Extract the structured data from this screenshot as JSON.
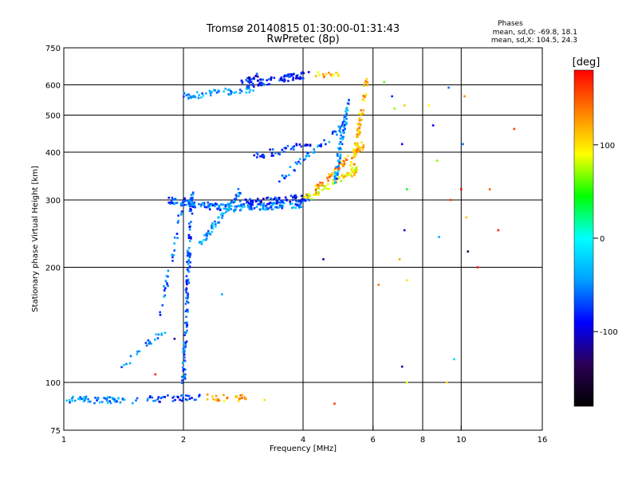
{
  "chart_data": {
    "type": "scatter",
    "title": "Tromsø 20140815 01:30:00-01:31:43",
    "subtitle": "RwPretec (8p)",
    "xlabel": "Frequency [MHz]",
    "ylabel": "Stationary phase Virtual Height [km]",
    "x_scale": "log2",
    "y_scale": "log",
    "xlim": [
      1,
      16
    ],
    "ylim": [
      75,
      750
    ],
    "x_ticks": [
      {
        "value": 1,
        "label": "1"
      },
      {
        "value": 2,
        "label": "2"
      },
      {
        "value": 4,
        "label": "4"
      },
      {
        "value": 6,
        "label": "6"
      },
      {
        "value": 8,
        "label": "8"
      },
      {
        "value": 10,
        "label": "10"
      },
      {
        "value": 16,
        "label": "16"
      }
    ],
    "y_ticks": [
      {
        "value": 75,
        "label": "75"
      },
      {
        "value": 100,
        "label": "100"
      },
      {
        "value": 200,
        "label": "200"
      },
      {
        "value": 300,
        "label": "300"
      },
      {
        "value": 400,
        "label": "400"
      },
      {
        "value": 500,
        "label": "500"
      },
      {
        "value": 600,
        "label": "600"
      },
      {
        "value": 750,
        "label": "750"
      }
    ],
    "x_grid": [
      2,
      4,
      6,
      8,
      10
    ],
    "y_grid": [
      100,
      200,
      300,
      400,
      500,
      600
    ],
    "grid": true,
    "phase_stats": {
      "title": "Phases",
      "line_o": "mean, sd,O: -69.8, 18.1",
      "line_x": "mean, sd,X: 104.5, 24.3"
    },
    "colorbar": {
      "label": "[deg]",
      "min": -180,
      "max": 180,
      "ticks": [
        {
          "value": 100,
          "label": "100"
        },
        {
          "value": 0,
          "label": "0"
        },
        {
          "value": -100,
          "label": "-100"
        }
      ],
      "colors": [
        "#000000",
        "#2a0055",
        "#0000ff",
        "#00a0ff",
        "#00ffff",
        "#00ff00",
        "#ffff00",
        "#ff8000",
        "#ff0000"
      ]
    },
    "echo_traces": [
      {
        "freq_start": 1.0,
        "freq_end": 1.55,
        "height_start": 90,
        "height_end": 90,
        "phase": -50,
        "count": 55
      },
      {
        "freq_start": 1.6,
        "freq_end": 2.2,
        "height_start": 90,
        "height_end": 92,
        "phase": -70,
        "count": 40
      },
      {
        "freq_start": 2.3,
        "freq_end": 2.9,
        "height_start": 91,
        "height_end": 91,
        "phase": 120,
        "count": 26
      },
      {
        "freq_start": 1.4,
        "freq_end": 1.85,
        "height_start": 110,
        "height_end": 140,
        "phase": -50,
        "count": 22
      },
      {
        "freq_start": 1.75,
        "freq_end": 2.0,
        "height_start": 150,
        "height_end": 300,
        "phase": -60,
        "count": 38
      },
      {
        "freq_start": 2.0,
        "freq_end": 2.1,
        "height_start": 100,
        "height_end": 320,
        "phase": -65,
        "count": 130
      },
      {
        "freq_start": 1.8,
        "freq_end": 2.6,
        "height_start": 300,
        "height_end": 285,
        "phase": -60,
        "count": 80
      },
      {
        "freq_start": 2.6,
        "freq_end": 4.0,
        "height_start": 285,
        "height_end": 292,
        "phase": -50,
        "count": 90
      },
      {
        "freq_start": 2.8,
        "freq_end": 4.2,
        "height_start": 295,
        "height_end": 305,
        "phase": -85,
        "count": 80
      },
      {
        "freq_start": 4.0,
        "freq_end": 5.5,
        "height_start": 300,
        "height_end": 360,
        "phase": 95,
        "count": 70
      },
      {
        "freq_start": 4.3,
        "freq_end": 5.7,
        "height_start": 320,
        "height_end": 420,
        "phase": 125,
        "count": 70
      },
      {
        "freq_start": 5.3,
        "freq_end": 5.8,
        "height_start": 360,
        "height_end": 620,
        "phase": 115,
        "count": 70
      },
      {
        "freq_start": 4.8,
        "freq_end": 5.2,
        "height_start": 330,
        "height_end": 560,
        "phase": -50,
        "count": 70
      },
      {
        "freq_start": 3.5,
        "freq_end": 5.2,
        "height_start": 340,
        "height_end": 480,
        "phase": -60,
        "count": 50
      },
      {
        "freq_start": 3.0,
        "freq_end": 4.2,
        "height_start": 390,
        "height_end": 420,
        "phase": -85,
        "count": 40
      },
      {
        "freq_start": 2.0,
        "freq_end": 3.0,
        "height_start": 560,
        "height_end": 585,
        "phase": -45,
        "count": 55
      },
      {
        "freq_start": 2.9,
        "freq_end": 4.1,
        "height_start": 600,
        "height_end": 640,
        "phase": -80,
        "count": 70
      },
      {
        "freq_start": 4.3,
        "freq_end": 4.9,
        "height_start": 640,
        "height_end": 640,
        "phase": 115,
        "count": 16
      },
      {
        "freq_start": 2.2,
        "freq_end": 2.8,
        "height_start": 230,
        "height_end": 320,
        "phase": -45,
        "count": 60
      },
      {
        "freq_start": 2.8,
        "freq_end": 3.1,
        "height_start": 600,
        "height_end": 640,
        "phase": -90,
        "count": 18
      }
    ],
    "isolated_points": [
      {
        "freq": 6.4,
        "height": 610,
        "phase": 60
      },
      {
        "freq": 6.7,
        "height": 560,
        "phase": -80
      },
      {
        "freq": 6.8,
        "height": 520,
        "phase": 70
      },
      {
        "freq": 7.2,
        "height": 530,
        "phase": 110
      },
      {
        "freq": 7.1,
        "height": 420,
        "phase": -90
      },
      {
        "freq": 7.3,
        "height": 320,
        "phase": 40
      },
      {
        "freq": 7.2,
        "height": 250,
        "phase": -110
      },
      {
        "freq": 7.0,
        "height": 210,
        "phase": 120
      },
      {
        "freq": 7.3,
        "height": 185,
        "phase": 100
      },
      {
        "freq": 6.2,
        "height": 180,
        "phase": 140
      },
      {
        "freq": 7.1,
        "height": 110,
        "phase": -120
      },
      {
        "freq": 7.3,
        "height": 100,
        "phase": 90
      },
      {
        "freq": 8.3,
        "height": 530,
        "phase": 90
      },
      {
        "freq": 8.5,
        "height": 470,
        "phase": -90
      },
      {
        "freq": 8.7,
        "height": 380,
        "phase": 70
      },
      {
        "freq": 8.8,
        "height": 240,
        "phase": -40
      },
      {
        "freq": 9.3,
        "height": 590,
        "phase": -60
      },
      {
        "freq": 9.4,
        "height": 300,
        "phase": 160
      },
      {
        "freq": 9.6,
        "height": 115,
        "phase": -20
      },
      {
        "freq": 9.2,
        "height": 100,
        "phase": 100
      },
      {
        "freq": 10.2,
        "height": 560,
        "phase": 130
      },
      {
        "freq": 10.1,
        "height": 420,
        "phase": -60
      },
      {
        "freq": 10.0,
        "height": 320,
        "phase": 180
      },
      {
        "freq": 10.3,
        "height": 270,
        "phase": 110
      },
      {
        "freq": 10.4,
        "height": 220,
        "phase": -150
      },
      {
        "freq": 11.0,
        "height": 200,
        "phase": 170
      },
      {
        "freq": 11.8,
        "height": 320,
        "phase": 150
      },
      {
        "freq": 12.4,
        "height": 250,
        "phase": 170
      },
      {
        "freq": 13.6,
        "height": 460,
        "phase": 160
      },
      {
        "freq": 4.8,
        "height": 88,
        "phase": 160
      },
      {
        "freq": 4.5,
        "height": 210,
        "phase": -110
      },
      {
        "freq": 3.2,
        "height": 90,
        "phase": 100
      },
      {
        "freq": 2.3,
        "height": 93,
        "phase": 130
      },
      {
        "freq": 2.5,
        "height": 170,
        "phase": -40
      },
      {
        "freq": 1.9,
        "height": 130,
        "phase": -120
      },
      {
        "freq": 1.7,
        "height": 105,
        "phase": 170
      }
    ]
  }
}
